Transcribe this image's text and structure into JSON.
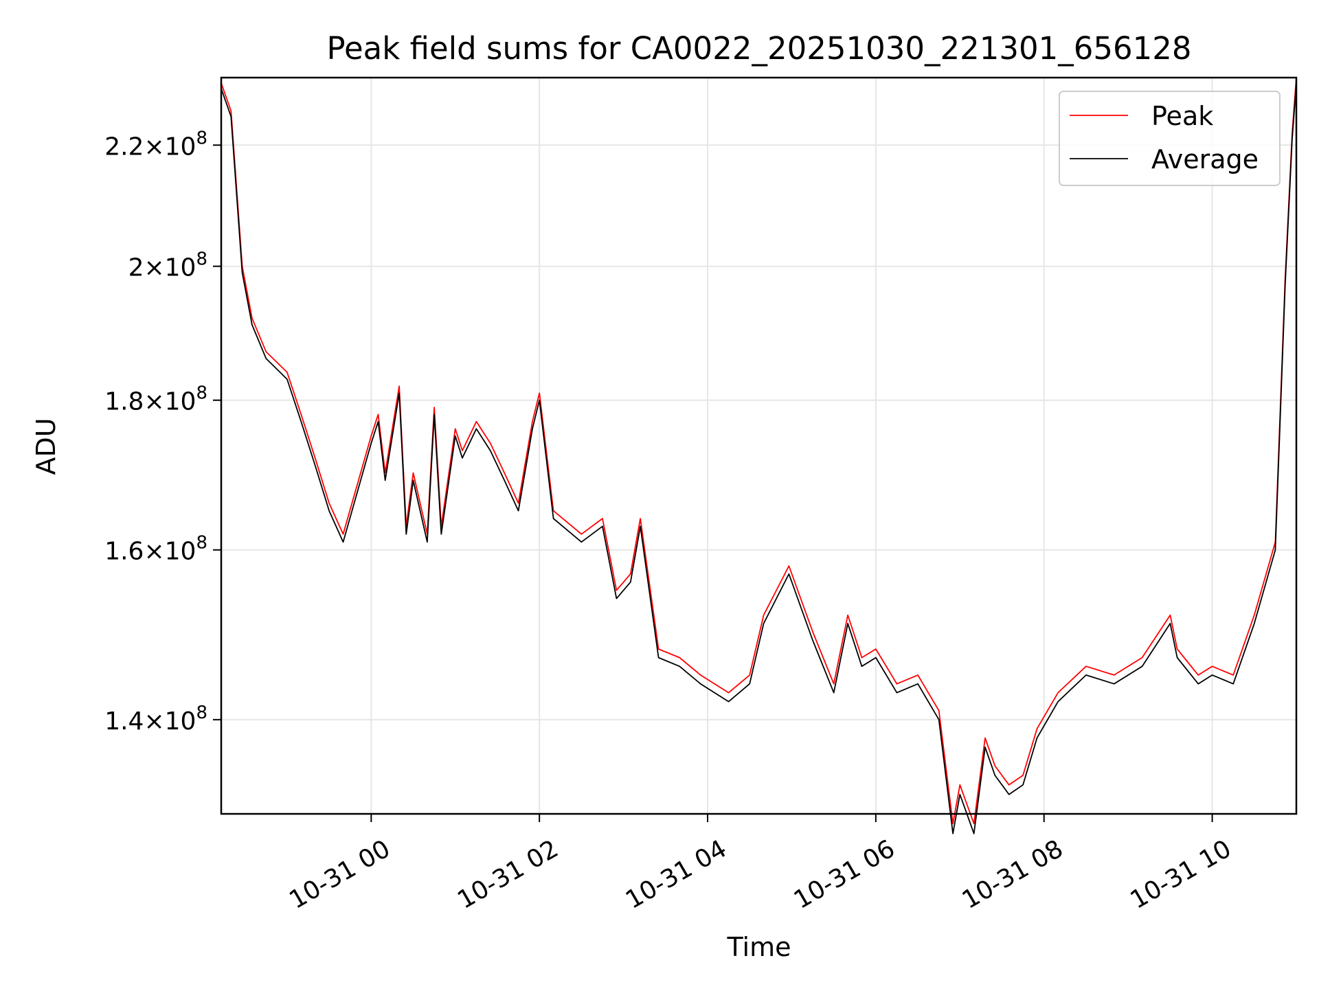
{
  "chart_data": {
    "type": "line",
    "title": "Peak field sums for CA0022_20251030_221301_656128",
    "xlabel": "Time",
    "ylabel": "ADU",
    "yscale": "log",
    "grid": true,
    "legend_position": "top-right",
    "x_range": [
      "2025-10-30 22:13",
      "2025-10-31 11:00"
    ],
    "ylim": [
      130000000,
      232000000
    ],
    "x_ticks": [
      {
        "t": "2025-10-31 00:00",
        "label": "10-31 00"
      },
      {
        "t": "2025-10-31 02:00",
        "label": "10-31 02"
      },
      {
        "t": "2025-10-31 04:00",
        "label": "10-31 04"
      },
      {
        "t": "2025-10-31 06:00",
        "label": "10-31 06"
      },
      {
        "t": "2025-10-31 08:00",
        "label": "10-31 08"
      },
      {
        "t": "2025-10-31 10:00",
        "label": "10-31 10"
      }
    ],
    "y_ticks": [
      {
        "value": 140000000,
        "mantissa": "1.4",
        "exp": "8"
      },
      {
        "value": 160000000,
        "mantissa": "1.6",
        "exp": "8"
      },
      {
        "value": 180000000,
        "mantissa": "1.8",
        "exp": "8"
      },
      {
        "value": 200000000,
        "mantissa": "2",
        "exp": "8"
      },
      {
        "value": 220000000,
        "mantissa": "2.2",
        "exp": "8"
      }
    ],
    "x": [
      "2025-10-30 22:13",
      "2025-10-30 22:20",
      "2025-10-30 22:28",
      "2025-10-30 22:35",
      "2025-10-30 22:45",
      "2025-10-30 23:00",
      "2025-10-30 23:10",
      "2025-10-30 23:20",
      "2025-10-30 23:30",
      "2025-10-30 23:40",
      "2025-10-31 00:00",
      "2025-10-31 00:05",
      "2025-10-31 00:10",
      "2025-10-31 00:20",
      "2025-10-31 00:25",
      "2025-10-31 00:30",
      "2025-10-31 00:40",
      "2025-10-31 00:45",
      "2025-10-31 00:50",
      "2025-10-31 01:00",
      "2025-10-31 01:05",
      "2025-10-31 01:15",
      "2025-10-31 01:25",
      "2025-10-31 01:35",
      "2025-10-31 01:45",
      "2025-10-31 01:55",
      "2025-10-31 02:00",
      "2025-10-31 02:10",
      "2025-10-31 02:30",
      "2025-10-31 02:45",
      "2025-10-31 02:55",
      "2025-10-31 03:05",
      "2025-10-31 03:12",
      "2025-10-31 03:25",
      "2025-10-31 03:40",
      "2025-10-31 03:55",
      "2025-10-31 04:15",
      "2025-10-31 04:30",
      "2025-10-31 04:40",
      "2025-10-31 04:58",
      "2025-10-31 05:15",
      "2025-10-31 05:30",
      "2025-10-31 05:40",
      "2025-10-31 05:50",
      "2025-10-31 06:00",
      "2025-10-31 06:15",
      "2025-10-31 06:30",
      "2025-10-31 06:45",
      "2025-10-31 06:55",
      "2025-10-31 07:00",
      "2025-10-31 07:10",
      "2025-10-31 07:18",
      "2025-10-31 07:25",
      "2025-10-31 07:35",
      "2025-10-31 07:45",
      "2025-10-31 07:55",
      "2025-10-31 08:10",
      "2025-10-31 08:30",
      "2025-10-31 08:50",
      "2025-10-31 09:10",
      "2025-10-31 09:30",
      "2025-10-31 09:35",
      "2025-10-31 09:50",
      "2025-10-31 10:00",
      "2025-10-31 10:15",
      "2025-10-31 10:30",
      "2025-10-31 10:45",
      "2025-10-31 10:52",
      "2025-10-31 10:57",
      "2025-10-31 11:00"
    ],
    "series": [
      {
        "name": "Peak",
        "color": "#ff0000",
        "values": [
          231000000,
          226000000,
          200000000,
          192000000,
          187000000,
          184000000,
          178000000,
          172000000,
          166000000,
          162000000,
          175000000,
          178000000,
          170000000,
          182000000,
          163000000,
          170000000,
          162000000,
          179000000,
          163000000,
          176000000,
          173000000,
          177000000,
          174000000,
          170000000,
          166000000,
          177000000,
          181000000,
          165000000,
          162000000,
          164000000,
          155000000,
          157000000,
          164000000,
          148000000,
          147000000,
          145000000,
          143000000,
          145000000,
          152000000,
          158000000,
          150000000,
          144000000,
          152000000,
          147000000,
          148000000,
          144000000,
          145000000,
          141000000,
          129000000,
          133000000,
          129000000,
          138000000,
          135000000,
          133000000,
          134000000,
          139000000,
          143000000,
          146000000,
          145000000,
          147000000,
          152000000,
          148000000,
          145000000,
          146000000,
          145000000,
          152000000,
          161000000,
          198000000,
          222000000,
          232000000
        ]
      },
      {
        "name": "Average",
        "color": "#000000",
        "values": [
          230000000,
          225000000,
          199000000,
          191000000,
          186000000,
          183000000,
          177000000,
          171000000,
          165000000,
          161000000,
          174000000,
          177000000,
          169000000,
          181000000,
          162000000,
          169000000,
          161000000,
          178000000,
          162000000,
          175000000,
          172000000,
          176000000,
          173000000,
          169000000,
          165000000,
          176000000,
          180000000,
          164000000,
          161000000,
          163000000,
          154000000,
          156000000,
          163000000,
          147000000,
          146000000,
          144000000,
          142000000,
          144000000,
          151000000,
          157000000,
          149000000,
          143000000,
          151000000,
          146000000,
          147000000,
          143000000,
          144000000,
          140000000,
          128000000,
          132000000,
          128000000,
          137000000,
          134000000,
          132000000,
          133000000,
          138000000,
          142000000,
          145000000,
          144000000,
          146000000,
          151000000,
          147000000,
          144000000,
          145000000,
          144000000,
          151000000,
          160000000,
          197000000,
          221000000,
          231000000
        ]
      }
    ]
  }
}
